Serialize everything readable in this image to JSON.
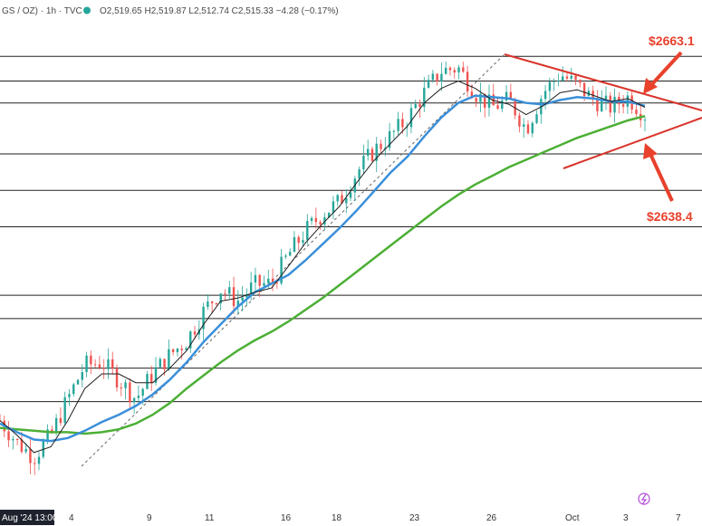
{
  "header": {
    "symbol": "GS / OZ) · 1h · TVC",
    "ohlc": "O2,519.65 H2,519.87 L2,512.74 C2,515.33 −4.28 (−0.17%)"
  },
  "x_axis": {
    "labels": [
      "Aug '24 13:00",
      "4",
      "9",
      "11",
      "16",
      "18",
      "23",
      "26",
      "Oct",
      "3",
      "7"
    ]
  },
  "annotations": {
    "upper": "$2663.1",
    "lower": "$2638.4"
  },
  "colors": {
    "background": "#ffffff",
    "up_candle": "#26a69a",
    "down_candle": "#ef5350",
    "ma_fast": "#1f1f1f",
    "ma_mid": "#3a8fd9",
    "ma_slow": "#4caf35",
    "triangle": "#d9342b",
    "horizontal_lines": "#222222",
    "channel_line": "#666666"
  },
  "chart_data": {
    "type": "line",
    "title": "",
    "x_labels": [
      "Aug '24 13:00",
      "4",
      "9",
      "11",
      "16",
      "18",
      "23",
      "26",
      "Oct",
      "3",
      "7"
    ],
    "series": [
      {
        "key": "price",
        "style": "candles-approx",
        "values": [
          2430,
          2415,
          2405,
          2420,
          2445,
          2468,
          2470,
          2458,
          2445,
          2462,
          2475,
          2485,
          2505,
          2520,
          2512,
          2523,
          2524,
          2544,
          2560,
          2572,
          2580,
          2600,
          2615,
          2625,
          2637,
          2655,
          2670,
          2672,
          2655,
          2645,
          2650,
          2630,
          2655,
          2668,
          2660,
          2650,
          2645,
          2652,
          2640
        ]
      },
      {
        "key": "ma_fast",
        "values": [
          2430,
          2420,
          2408,
          2412,
          2430,
          2452,
          2462,
          2462,
          2456,
          2456,
          2466,
          2478,
          2496,
          2512,
          2514,
          2518,
          2521,
          2536,
          2552,
          2565,
          2577,
          2593,
          2608,
          2620,
          2632,
          2648,
          2658,
          2663,
          2658,
          2650,
          2647,
          2640,
          2646,
          2655,
          2657,
          2653,
          2649,
          2651,
          2645
        ]
      },
      {
        "key": "ma_mid",
        "values": [
          2428,
          2422,
          2417,
          2416,
          2418,
          2423,
          2429,
          2434,
          2440,
          2448,
          2458,
          2470,
          2484,
          2496,
          2508,
          2518,
          2524,
          2530,
          2540,
          2551,
          2562,
          2574,
          2587,
          2600,
          2611,
          2625,
          2638,
          2648,
          2653,
          2652,
          2651,
          2648,
          2647,
          2650,
          2652,
          2651,
          2649,
          2649,
          2646
        ]
      },
      {
        "key": "ma_slow",
        "values": [
          2425,
          2424,
          2423,
          2422,
          2422,
          2421,
          2422,
          2424,
          2428,
          2434,
          2442,
          2452,
          2461,
          2470,
          2478,
          2485,
          2491,
          2498,
          2506,
          2514,
          2523,
          2532,
          2541,
          2550,
          2559,
          2568,
          2577,
          2585,
          2592,
          2598,
          2604,
          2609,
          2614,
          2619,
          2624,
          2628,
          2632,
          2636,
          2639
        ]
      }
    ],
    "horizontal_levels": [
      2680,
      2663,
      2648,
      2613,
      2588,
      2563,
      2516,
      2500,
      2466,
      2443
    ],
    "ylim": [
      2380,
      2700
    ],
    "grid": false,
    "legend": "none"
  }
}
